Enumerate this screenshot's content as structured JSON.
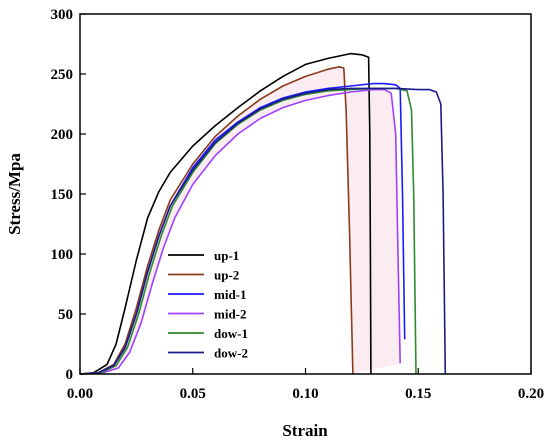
{
  "chart_data": {
    "type": "line",
    "title": "",
    "xlabel": "Strain",
    "ylabel": "Stress/Mpa",
    "xlim": [
      0.0,
      0.2
    ],
    "ylim": [
      0,
      300
    ],
    "xticks": [
      "0.00",
      "0.05",
      "0.10",
      "0.15",
      "0.20"
    ],
    "yticks": [
      "0",
      "50",
      "100",
      "150",
      "200",
      "250",
      "300"
    ],
    "grid": false,
    "legend_position": "lower-left",
    "series": [
      {
        "name": "up-1",
        "color": "#000000",
        "points": [
          [
            0,
            0
          ],
          [
            0.006,
            1
          ],
          [
            0.012,
            8
          ],
          [
            0.016,
            25
          ],
          [
            0.02,
            55
          ],
          [
            0.025,
            95
          ],
          [
            0.03,
            130
          ],
          [
            0.035,
            152
          ],
          [
            0.04,
            168
          ],
          [
            0.05,
            190
          ],
          [
            0.06,
            207
          ],
          [
            0.07,
            222
          ],
          [
            0.08,
            236
          ],
          [
            0.09,
            248
          ],
          [
            0.1,
            258
          ],
          [
            0.11,
            263
          ],
          [
            0.115,
            265
          ],
          [
            0.12,
            267
          ],
          [
            0.125,
            266
          ],
          [
            0.128,
            264
          ],
          [
            0.1285,
            200
          ],
          [
            0.1288,
            100
          ],
          [
            0.129,
            0
          ]
        ]
      },
      {
        "name": "up-2",
        "color": "#8b3a1a",
        "points": [
          [
            0,
            0
          ],
          [
            0.008,
            1
          ],
          [
            0.015,
            8
          ],
          [
            0.02,
            25
          ],
          [
            0.025,
            55
          ],
          [
            0.03,
            90
          ],
          [
            0.035,
            120
          ],
          [
            0.04,
            145
          ],
          [
            0.05,
            175
          ],
          [
            0.06,
            198
          ],
          [
            0.07,
            215
          ],
          [
            0.08,
            229
          ],
          [
            0.09,
            240
          ],
          [
            0.1,
            248
          ],
          [
            0.11,
            254
          ],
          [
            0.115,
            256
          ],
          [
            0.117,
            255
          ],
          [
            0.118,
            220
          ],
          [
            0.1195,
            120
          ],
          [
            0.121,
            0
          ]
        ]
      },
      {
        "name": "mid-1",
        "color": "#1a1aff",
        "points": [
          [
            0,
            0
          ],
          [
            0.008,
            1
          ],
          [
            0.015,
            7
          ],
          [
            0.02,
            22
          ],
          [
            0.025,
            50
          ],
          [
            0.03,
            85
          ],
          [
            0.035,
            115
          ],
          [
            0.04,
            140
          ],
          [
            0.05,
            172
          ],
          [
            0.06,
            195
          ],
          [
            0.07,
            210
          ],
          [
            0.08,
            222
          ],
          [
            0.09,
            230
          ],
          [
            0.1,
            235
          ],
          [
            0.11,
            238
          ],
          [
            0.12,
            240
          ],
          [
            0.13,
            242
          ],
          [
            0.135,
            242
          ],
          [
            0.14,
            241
          ],
          [
            0.142,
            238
          ],
          [
            0.143,
            150
          ],
          [
            0.144,
            29
          ]
        ]
      },
      {
        "name": "mid-2",
        "color": "#a040ff",
        "points": [
          [
            0,
            0
          ],
          [
            0.01,
            1
          ],
          [
            0.017,
            5
          ],
          [
            0.022,
            18
          ],
          [
            0.027,
            42
          ],
          [
            0.032,
            75
          ],
          [
            0.037,
            105
          ],
          [
            0.042,
            130
          ],
          [
            0.05,
            158
          ],
          [
            0.06,
            182
          ],
          [
            0.07,
            200
          ],
          [
            0.08,
            213
          ],
          [
            0.09,
            222
          ],
          [
            0.1,
            228
          ],
          [
            0.11,
            232
          ],
          [
            0.12,
            235
          ],
          [
            0.13,
            237
          ],
          [
            0.135,
            237
          ],
          [
            0.138,
            234
          ],
          [
            0.14,
            200
          ],
          [
            0.141,
            100
          ],
          [
            0.142,
            9
          ]
        ]
      },
      {
        "name": "dow-1",
        "color": "#2e8b2e",
        "points": [
          [
            0,
            0
          ],
          [
            0.009,
            1
          ],
          [
            0.016,
            7
          ],
          [
            0.021,
            22
          ],
          [
            0.026,
            50
          ],
          [
            0.031,
            85
          ],
          [
            0.036,
            115
          ],
          [
            0.041,
            140
          ],
          [
            0.05,
            168
          ],
          [
            0.06,
            192
          ],
          [
            0.07,
            208
          ],
          [
            0.08,
            220
          ],
          [
            0.09,
            228
          ],
          [
            0.1,
            233
          ],
          [
            0.11,
            236
          ],
          [
            0.12,
            237
          ],
          [
            0.13,
            238
          ],
          [
            0.14,
            238
          ],
          [
            0.145,
            236
          ],
          [
            0.147,
            220
          ],
          [
            0.148,
            150
          ],
          [
            0.149,
            0
          ]
        ]
      },
      {
        "name": "dow-2",
        "color": "#1a1a8b",
        "points": [
          [
            0,
            0
          ],
          [
            0.008,
            1
          ],
          [
            0.015,
            7
          ],
          [
            0.02,
            22
          ],
          [
            0.025,
            50
          ],
          [
            0.03,
            85
          ],
          [
            0.035,
            115
          ],
          [
            0.04,
            140
          ],
          [
            0.05,
            170
          ],
          [
            0.06,
            193
          ],
          [
            0.07,
            209
          ],
          [
            0.08,
            221
          ],
          [
            0.09,
            229
          ],
          [
            0.1,
            234
          ],
          [
            0.11,
            237
          ],
          [
            0.12,
            238
          ],
          [
            0.13,
            238
          ],
          [
            0.14,
            238
          ],
          [
            0.15,
            237
          ],
          [
            0.155,
            237
          ],
          [
            0.158,
            235
          ],
          [
            0.16,
            225
          ],
          [
            0.161,
            150
          ],
          [
            0.162,
            0
          ]
        ]
      }
    ]
  }
}
